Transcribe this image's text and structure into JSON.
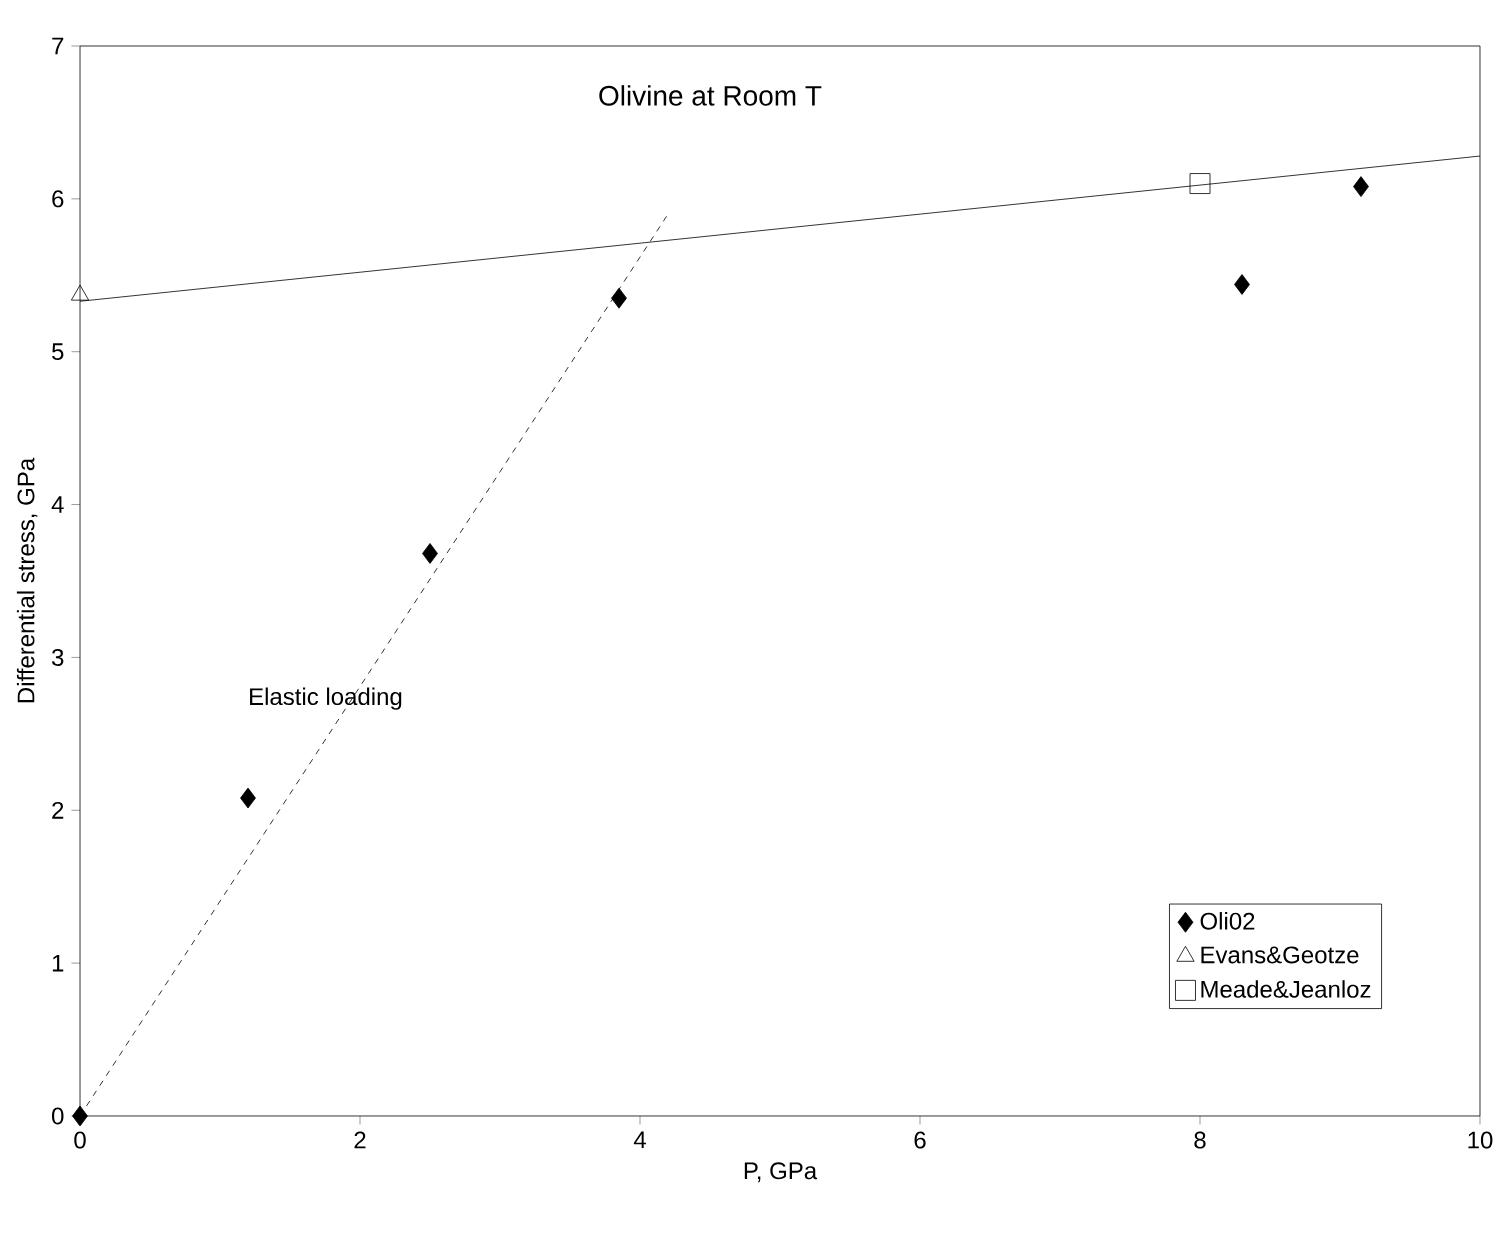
{
  "chart_data": {
    "type": "scatter",
    "title": "Olivine at Room T",
    "xlabel": "P, GPa",
    "ylabel": "Differential stress, GPa",
    "xlim": [
      0,
      10
    ],
    "ylim": [
      0,
      7
    ],
    "xticks": [
      0,
      2,
      4,
      6,
      8,
      10
    ],
    "yticks": [
      0,
      1,
      2,
      3,
      4,
      5,
      6,
      7
    ],
    "grid": false,
    "legend": "bottom right",
    "annotations": [
      "Elastic loading"
    ],
    "series": [
      {
        "name": "Oli02",
        "color": "#000000",
        "marker": "diamond",
        "x": [
          0,
          1.2,
          2.5,
          3.85,
          8.3,
          9.15
        ],
        "values": [
          0,
          2.08,
          3.68,
          5.35,
          5.44,
          6.08
        ]
      },
      {
        "name": "Evans&Geotze",
        "color": "#000000",
        "marker": "triangle",
        "x": [
          0
        ],
        "values": [
          5.37
        ]
      },
      {
        "name": "Meade&Jeanloz",
        "color": "#000000",
        "marker": "square",
        "x": [
          8
        ],
        "values": [
          6.1
        ]
      },
      {
        "type": "line",
        "color": "#000000",
        "line_style": "solid",
        "marker": "none",
        "x": [
          0,
          10
        ],
        "values": [
          5.33,
          6.28
        ]
      },
      {
        "type": "line",
        "color": "#000000",
        "line_style": "dashed",
        "marker": "none",
        "x": [
          0,
          4.2
        ],
        "values": [
          0,
          5.9
        ]
      }
    ]
  }
}
